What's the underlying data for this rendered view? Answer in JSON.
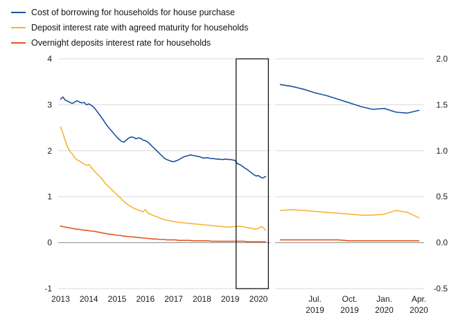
{
  "legend": {
    "items": [
      {
        "label": "Cost of borrowing for households for house purchase",
        "color": "#1a4f9c"
      },
      {
        "label": "Deposit interest rate with agreed maturity for households",
        "color": "#f8b334"
      },
      {
        "label": "Overnight deposits interest rate for households",
        "color": "#e5531a"
      }
    ]
  },
  "chart_data": [
    {
      "type": "line",
      "panel": "left",
      "x_period": "monthly, 2013-01 to 2020-04",
      "ylim": [
        -1,
        4
      ],
      "y_tick_values": [
        4,
        3,
        2,
        1,
        0,
        -1
      ],
      "y_tick_labels": [
        "4",
        "3",
        "2",
        "1",
        "0",
        "-1"
      ],
      "grid_color": "#d9d9d9",
      "zero_line_color": "#8a8a8a",
      "zoom_box": {
        "from_index": 74.5,
        "to_index": 88.2
      },
      "x_ticks": [
        {
          "index": 0,
          "label": "2013"
        },
        {
          "index": 12,
          "label": "2014"
        },
        {
          "index": 24,
          "label": "2015"
        },
        {
          "index": 36,
          "label": "2016"
        },
        {
          "index": 48,
          "label": "2017"
        },
        {
          "index": 60,
          "label": "2018"
        },
        {
          "index": 72,
          "label": "2019"
        },
        {
          "index": 84,
          "label": "2020"
        }
      ],
      "series": [
        {
          "name": "Cost of borrowing for households for house purchase",
          "color": "#1a4f9c",
          "values": [
            3.12,
            3.17,
            3.1,
            3.08,
            3.05,
            3.03,
            3.06,
            3.09,
            3.06,
            3.04,
            3.05,
            3.0,
            3.02,
            2.99,
            2.95,
            2.89,
            2.82,
            2.75,
            2.68,
            2.6,
            2.53,
            2.47,
            2.41,
            2.35,
            2.29,
            2.24,
            2.2,
            2.19,
            2.24,
            2.28,
            2.3,
            2.29,
            2.26,
            2.28,
            2.27,
            2.23,
            2.22,
            2.19,
            2.14,
            2.09,
            2.04,
            1.99,
            1.94,
            1.89,
            1.84,
            1.81,
            1.79,
            1.77,
            1.76,
            1.78,
            1.8,
            1.83,
            1.86,
            1.88,
            1.89,
            1.91,
            1.9,
            1.89,
            1.88,
            1.87,
            1.85,
            1.84,
            1.85,
            1.84,
            1.83,
            1.83,
            1.82,
            1.82,
            1.81,
            1.81,
            1.82,
            1.81,
            1.81,
            1.8,
            1.79,
            1.72,
            1.7,
            1.67,
            1.63,
            1.6,
            1.56,
            1.52,
            1.48,
            1.45,
            1.46,
            1.42,
            1.41,
            1.44
          ]
        },
        {
          "name": "Deposit interest rate with agreed maturity for households",
          "color": "#f8b334",
          "values": [
            2.52,
            2.38,
            2.22,
            2.08,
            1.98,
            1.93,
            1.85,
            1.8,
            1.78,
            1.74,
            1.71,
            1.68,
            1.7,
            1.64,
            1.58,
            1.52,
            1.47,
            1.42,
            1.36,
            1.29,
            1.24,
            1.19,
            1.14,
            1.09,
            1.04,
            0.99,
            0.94,
            0.89,
            0.85,
            0.81,
            0.78,
            0.75,
            0.73,
            0.71,
            0.69,
            0.67,
            0.72,
            0.65,
            0.62,
            0.6,
            0.58,
            0.56,
            0.54,
            0.52,
            0.5,
            0.49,
            0.48,
            0.47,
            0.46,
            0.45,
            0.44,
            0.44,
            0.43,
            0.43,
            0.42,
            0.42,
            0.41,
            0.41,
            0.4,
            0.4,
            0.39,
            0.39,
            0.38,
            0.38,
            0.37,
            0.37,
            0.36,
            0.36,
            0.35,
            0.35,
            0.34,
            0.34,
            0.34,
            0.35,
            0.35,
            0.35,
            0.36,
            0.35,
            0.34,
            0.33,
            0.32,
            0.31,
            0.3,
            0.3,
            0.31,
            0.35,
            0.33,
            0.27
          ]
        },
        {
          "name": "Overnight deposits interest rate for households",
          "color": "#e5531a",
          "values": [
            0.36,
            0.35,
            0.34,
            0.33,
            0.32,
            0.31,
            0.3,
            0.29,
            0.29,
            0.28,
            0.27,
            0.27,
            0.26,
            0.25,
            0.25,
            0.24,
            0.23,
            0.22,
            0.21,
            0.2,
            0.19,
            0.18,
            0.18,
            0.17,
            0.16,
            0.16,
            0.15,
            0.14,
            0.14,
            0.13,
            0.13,
            0.12,
            0.12,
            0.11,
            0.11,
            0.1,
            0.1,
            0.09,
            0.09,
            0.08,
            0.08,
            0.08,
            0.07,
            0.07,
            0.07,
            0.06,
            0.06,
            0.06,
            0.06,
            0.06,
            0.05,
            0.05,
            0.05,
            0.05,
            0.05,
            0.05,
            0.04,
            0.04,
            0.04,
            0.04,
            0.04,
            0.04,
            0.04,
            0.04,
            0.03,
            0.03,
            0.03,
            0.03,
            0.03,
            0.03,
            0.03,
            0.03,
            0.03,
            0.03,
            0.03,
            0.03,
            0.03,
            0.03,
            0.03,
            0.02,
            0.02,
            0.02,
            0.02,
            0.02,
            0.02,
            0.02,
            0.02,
            0.02
          ]
        }
      ]
    },
    {
      "type": "line",
      "panel": "right",
      "x_period": "monthly, 2019-04 to 2020-04 (zoom of boxed region)",
      "ylim": [
        -0.5,
        2.0
      ],
      "y_tick_values": [
        2.0,
        1.5,
        1.0,
        0.5,
        0.0,
        -0.5
      ],
      "y_tick_labels": [
        "2.0",
        "1.5",
        "1.0",
        "0.5",
        "0.0",
        "-0.5"
      ],
      "grid_color": "#d9d9d9",
      "zero_line_color": "#8a8a8a",
      "x_ticks": [
        {
          "index": 3,
          "label": [
            "Jul.",
            "2019"
          ]
        },
        {
          "index": 6,
          "label": [
            "Oct.",
            "2019"
          ]
        },
        {
          "index": 9,
          "label": [
            "Jan.",
            "2020"
          ]
        },
        {
          "index": 12,
          "label": [
            "Apr.",
            "2020"
          ]
        }
      ],
      "series": [
        {
          "name": "Cost of borrowing for households for house purchase",
          "color": "#1a4f9c",
          "values": [
            1.72,
            1.7,
            1.67,
            1.63,
            1.6,
            1.56,
            1.52,
            1.48,
            1.45,
            1.46,
            1.42,
            1.41,
            1.44
          ]
        },
        {
          "name": "Deposit interest rate with agreed maturity for households",
          "color": "#f8b334",
          "values": [
            0.35,
            0.36,
            0.35,
            0.34,
            0.33,
            0.32,
            0.31,
            0.3,
            0.3,
            0.31,
            0.35,
            0.33,
            0.27
          ]
        },
        {
          "name": "Overnight deposits interest rate for households",
          "color": "#e5531a",
          "values": [
            0.03,
            0.03,
            0.03,
            0.03,
            0.03,
            0.03,
            0.02,
            0.02,
            0.02,
            0.02,
            0.02,
            0.02,
            0.02
          ]
        }
      ]
    }
  ]
}
